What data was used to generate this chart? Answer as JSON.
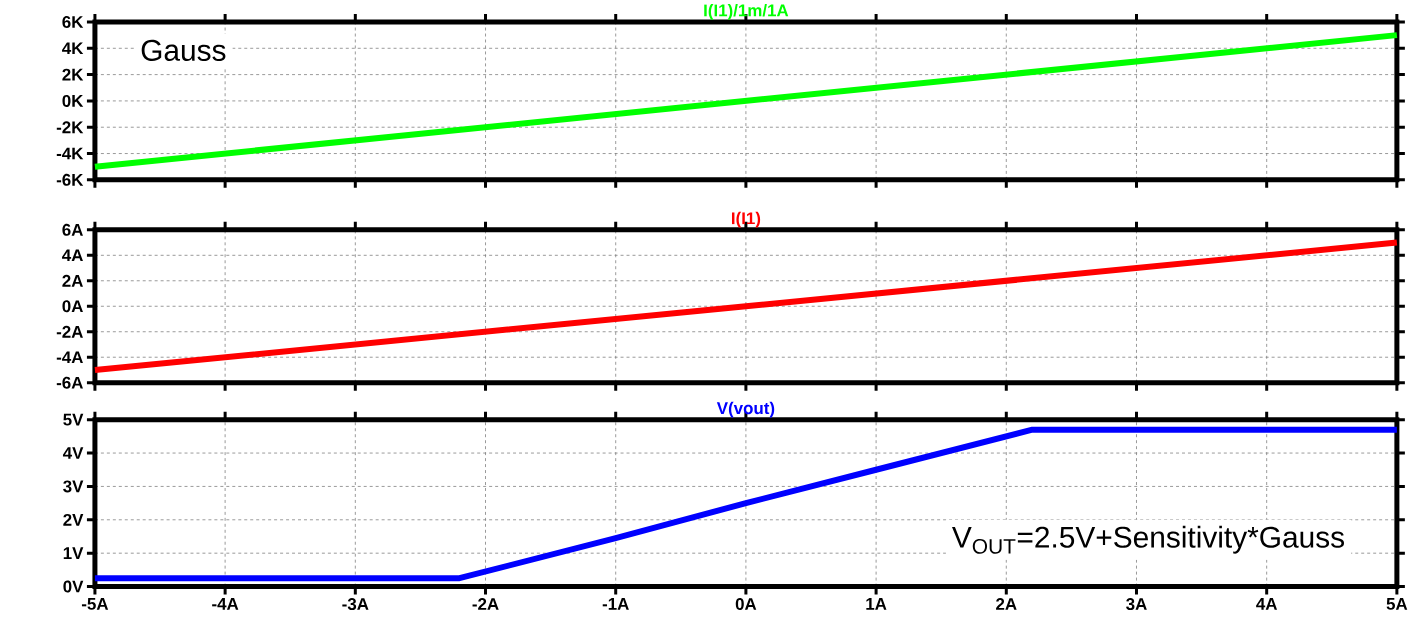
{
  "chart_data": [
    {
      "type": "line",
      "x": [
        -5,
        0,
        5
      ],
      "xlim": [
        -5,
        5
      ],
      "ylim": [
        -6000,
        6000
      ],
      "xticks": [
        {
          "value": -5,
          "label": null
        },
        {
          "value": -4,
          "label": null
        },
        {
          "value": -3,
          "label": null
        },
        {
          "value": -2,
          "label": null
        },
        {
          "value": -1,
          "label": null
        },
        {
          "value": 0,
          "label": null
        },
        {
          "value": 1,
          "label": null
        },
        {
          "value": 2,
          "label": null
        },
        {
          "value": 3,
          "label": null
        },
        {
          "value": 4,
          "label": null
        },
        {
          "value": 5,
          "label": null
        }
      ],
      "yticks": [
        {
          "value": -6000,
          "label": "-6K"
        },
        {
          "value": -4000,
          "label": "-4K"
        },
        {
          "value": -2000,
          "label": "-2K"
        },
        {
          "value": 0,
          "label": "0K"
        },
        {
          "value": 2000,
          "label": "2K"
        },
        {
          "value": 4000,
          "label": "4K"
        },
        {
          "value": 6000,
          "label": "6K"
        }
      ],
      "grid": true,
      "legend": "top",
      "tick_labels": "y",
      "series": [
        {
          "name": "I(I1)/1m/1A",
          "color": "#00ff00",
          "values": [
            -5000,
            0,
            5000
          ]
        }
      ],
      "annotations": [
        "Gauss"
      ]
    },
    {
      "type": "line",
      "x": [
        -5,
        0,
        5
      ],
      "xlim": [
        -5,
        5
      ],
      "ylim": [
        -6,
        6
      ],
      "xticks": [
        {
          "value": -5,
          "label": null
        },
        {
          "value": -4,
          "label": null
        },
        {
          "value": -3,
          "label": null
        },
        {
          "value": -2,
          "label": null
        },
        {
          "value": -1,
          "label": null
        },
        {
          "value": 0,
          "label": null
        },
        {
          "value": 1,
          "label": null
        },
        {
          "value": 2,
          "label": null
        },
        {
          "value": 3,
          "label": null
        },
        {
          "value": 4,
          "label": null
        },
        {
          "value": 5,
          "label": null
        }
      ],
      "yticks": [
        {
          "value": -6,
          "label": "-6A"
        },
        {
          "value": -4,
          "label": "-4A"
        },
        {
          "value": -2,
          "label": "-2A"
        },
        {
          "value": 0,
          "label": "0A"
        },
        {
          "value": 2,
          "label": "2A"
        },
        {
          "value": 4,
          "label": "4A"
        },
        {
          "value": 6,
          "label": "6A"
        }
      ],
      "grid": true,
      "legend": "top",
      "tick_labels": "y",
      "series": [
        {
          "name": "I(I1)",
          "color": "#ff0000",
          "values": [
            -5,
            0,
            5
          ]
        }
      ]
    },
    {
      "type": "line",
      "x": [
        -5,
        -2.2,
        -1,
        0,
        1,
        2.2,
        5
      ],
      "xlim": [
        -5,
        5
      ],
      "ylim": [
        0,
        5
      ],
      "xticks": [
        {
          "value": -5,
          "label": "-5A"
        },
        {
          "value": -4,
          "label": "-4A"
        },
        {
          "value": -3,
          "label": "-3A"
        },
        {
          "value": -2,
          "label": "-2A"
        },
        {
          "value": -1,
          "label": "-1A"
        },
        {
          "value": 0,
          "label": "0A"
        },
        {
          "value": 1,
          "label": "1A"
        },
        {
          "value": 2,
          "label": "2A"
        },
        {
          "value": 3,
          "label": "3A"
        },
        {
          "value": 4,
          "label": "4A"
        },
        {
          "value": 5,
          "label": "5A"
        }
      ],
      "yticks": [
        {
          "value": 0,
          "label": "0V"
        },
        {
          "value": 1,
          "label": "1V"
        },
        {
          "value": 2,
          "label": "2V"
        },
        {
          "value": 3,
          "label": "3V"
        },
        {
          "value": 4,
          "label": "4V"
        },
        {
          "value": 5,
          "label": "5V"
        }
      ],
      "grid": true,
      "legend": "top",
      "series": [
        {
          "name": "V(vout)",
          "color": "#0000ff",
          "values": [
            0.25,
            0.25,
            1.45,
            2.5,
            3.5,
            4.7,
            4.7
          ]
        }
      ],
      "annotations": [
        "V$_{OUT}$=2.5V+Sensitivity*Gauss"
      ]
    }
  ]
}
